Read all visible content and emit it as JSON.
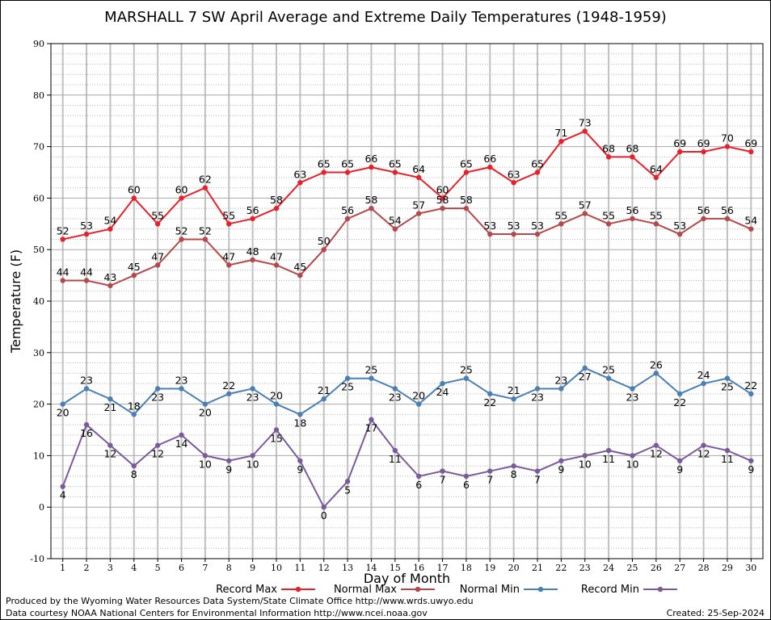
{
  "chart_data": {
    "type": "line",
    "title": "MARSHALL 7 SW April Average and Extreme Daily Temperatures (1948-1959)",
    "xlabel": "Day of Month",
    "ylabel": "Temperature (F)",
    "x": [
      1,
      2,
      3,
      4,
      5,
      6,
      7,
      8,
      9,
      10,
      11,
      12,
      13,
      14,
      15,
      16,
      17,
      18,
      19,
      20,
      21,
      22,
      23,
      24,
      25,
      26,
      27,
      28,
      29,
      30
    ],
    "xlim": [
      0.5,
      30.5
    ],
    "ylim": [
      -10,
      90
    ],
    "yticks": [
      -10,
      0,
      10,
      20,
      30,
      40,
      50,
      60,
      70,
      80,
      90
    ],
    "grid": true,
    "legend": "bottom",
    "series": [
      {
        "name": "Record Max",
        "color": "#e8202a",
        "label_pos": "above",
        "values": [
          52,
          53,
          54,
          60,
          55,
          60,
          62,
          55,
          56,
          58,
          63,
          65,
          65,
          66,
          65,
          64,
          60,
          65,
          66,
          63,
          65,
          71,
          73,
          68,
          68,
          64,
          69,
          69,
          70,
          69
        ]
      },
      {
        "name": "Normal Max",
        "color": "#b5484a",
        "label_pos": "above",
        "values": [
          44,
          44,
          43,
          45,
          47,
          52,
          52,
          47,
          48,
          47,
          45,
          50,
          56,
          58,
          54,
          57,
          58,
          58,
          53,
          53,
          53,
          55,
          57,
          55,
          56,
          55,
          53,
          56,
          56,
          54
        ]
      },
      {
        "name": "Normal Min",
        "color": "#4a7fb5",
        "label_pos": "alternate",
        "values": [
          20,
          23,
          21,
          18,
          23,
          23,
          20,
          22,
          23,
          20,
          18,
          21,
          25,
          25,
          23,
          20,
          24,
          25,
          22,
          21,
          23,
          23,
          27,
          25,
          23,
          26,
          22,
          24,
          25,
          22
        ]
      },
      {
        "name": "Record Min",
        "color": "#7b5a9c",
        "label_pos": "below",
        "values": [
          4,
          16,
          12,
          8,
          12,
          14,
          10,
          9,
          10,
          15,
          9,
          0,
          5,
          17,
          11,
          6,
          7,
          6,
          7,
          8,
          7,
          9,
          10,
          11,
          10,
          12,
          9,
          12,
          11,
          9
        ]
      }
    ]
  },
  "footer": {
    "line1": "Produced by the Wyoming Water Resources Data System/State Climate Office http://www.wrds.uwyo.edu",
    "line2": "Data courtesy NOAA National Centers for Environmental Information http://www.ncei.noaa.gov",
    "created": "Created: 25-Sep-2024"
  }
}
